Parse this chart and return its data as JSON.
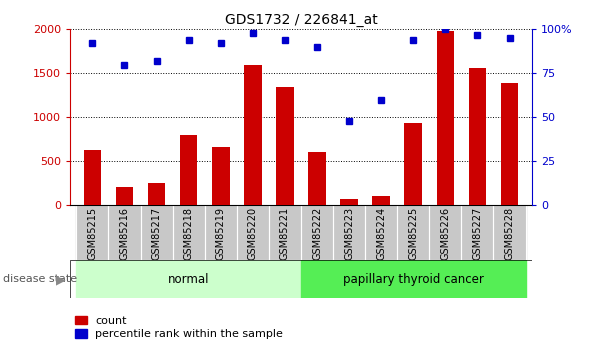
{
  "title": "GDS1732 / 226841_at",
  "samples": [
    "GSM85215",
    "GSM85216",
    "GSM85217",
    "GSM85218",
    "GSM85219",
    "GSM85220",
    "GSM85221",
    "GSM85222",
    "GSM85223",
    "GSM85224",
    "GSM85225",
    "GSM85226",
    "GSM85227",
    "GSM85228"
  ],
  "counts": [
    630,
    210,
    250,
    800,
    660,
    1600,
    1340,
    600,
    75,
    110,
    940,
    1980,
    1560,
    1390
  ],
  "percentiles": [
    92,
    80,
    82,
    94,
    92,
    98,
    94,
    90,
    48,
    60,
    94,
    100,
    97,
    95
  ],
  "normal_indices": [
    0,
    1,
    2,
    3,
    4,
    5,
    6
  ],
  "cancer_indices": [
    7,
    8,
    9,
    10,
    11,
    12,
    13
  ],
  "bar_color": "#cc0000",
  "dot_color": "#0000cc",
  "normal_label": "normal",
  "cancer_label": "papillary thyroid cancer",
  "disease_state_label": "disease state",
  "legend_count": "count",
  "legend_percentile": "percentile rank within the sample",
  "ylim_left": [
    0,
    2000
  ],
  "ylim_right": [
    0,
    100
  ],
  "yticks_left": [
    0,
    500,
    1000,
    1500,
    2000
  ],
  "yticks_right": [
    0,
    25,
    50,
    75,
    100
  ],
  "bar_color_hex": "#cc0000",
  "dot_color_hex": "#0000cc",
  "tick_area_color": "#c8c8c8",
  "normal_bg": "#ccffcc",
  "cancer_bg": "#55ee55",
  "bg_color": "#ffffff"
}
